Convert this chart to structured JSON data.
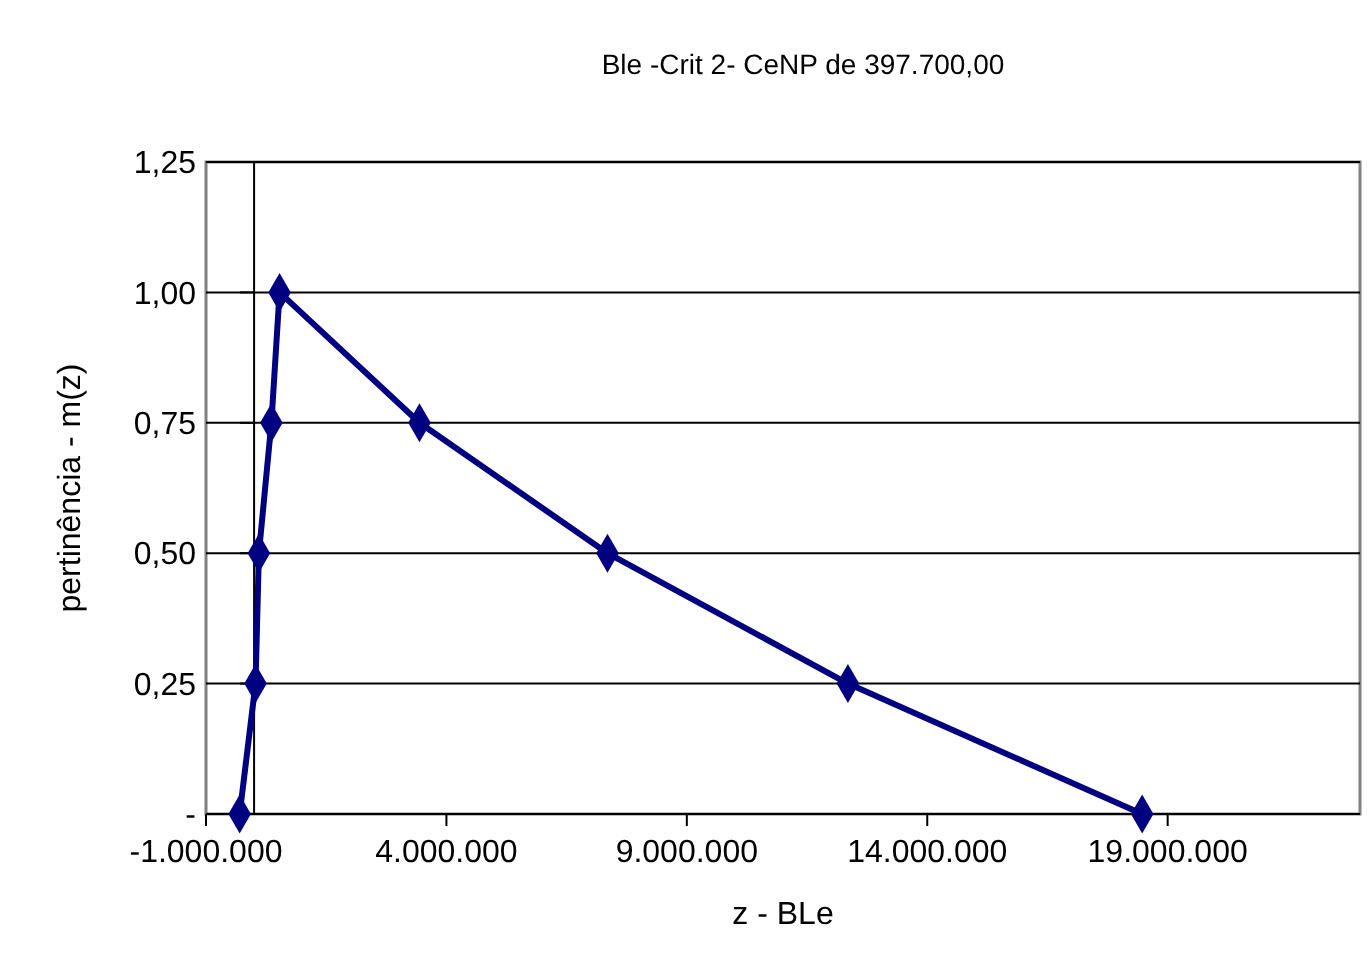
{
  "chart_data": {
    "type": "line",
    "title": "Ble -Crit 2- CeNP de 397.700,00",
    "xlabel": "z - BLe",
    "ylabel": "pertinência - m(z)",
    "x": [
      -300000,
      30000,
      100000,
      360000,
      530000,
      3440000,
      7350000,
      12350000,
      18470000
    ],
    "series": [
      {
        "color": "#000080",
        "values": [
          0,
          0.25,
          0.5,
          0.75,
          1,
          0.75,
          0.5,
          0.25,
          0
        ]
      }
    ],
    "xlim": [
      -1000000,
      23000000
    ],
    "xticks": [
      {
        "value": -1000000,
        "label": "-1.000.000"
      },
      {
        "value": 4000000,
        "label": "4.000.000"
      },
      {
        "value": 9000000,
        "label": "9.000.000"
      },
      {
        "value": 14000000,
        "label": "14.000.000"
      },
      {
        "value": 19000000,
        "label": "19.000.000"
      }
    ],
    "ylim": [
      0,
      1.25
    ],
    "yticks": [
      {
        "value": 0,
        "label": "-"
      },
      {
        "value": 0.25,
        "label": "0,25"
      },
      {
        "value": 0.5,
        "label": "0,50"
      },
      {
        "value": 0.75,
        "label": "0,75"
      },
      {
        "value": 1,
        "label": "1,00"
      },
      {
        "value": 1.25,
        "label": "1,25"
      }
    ],
    "grid": "y",
    "marker": "diamond",
    "line_style": "solid"
  }
}
